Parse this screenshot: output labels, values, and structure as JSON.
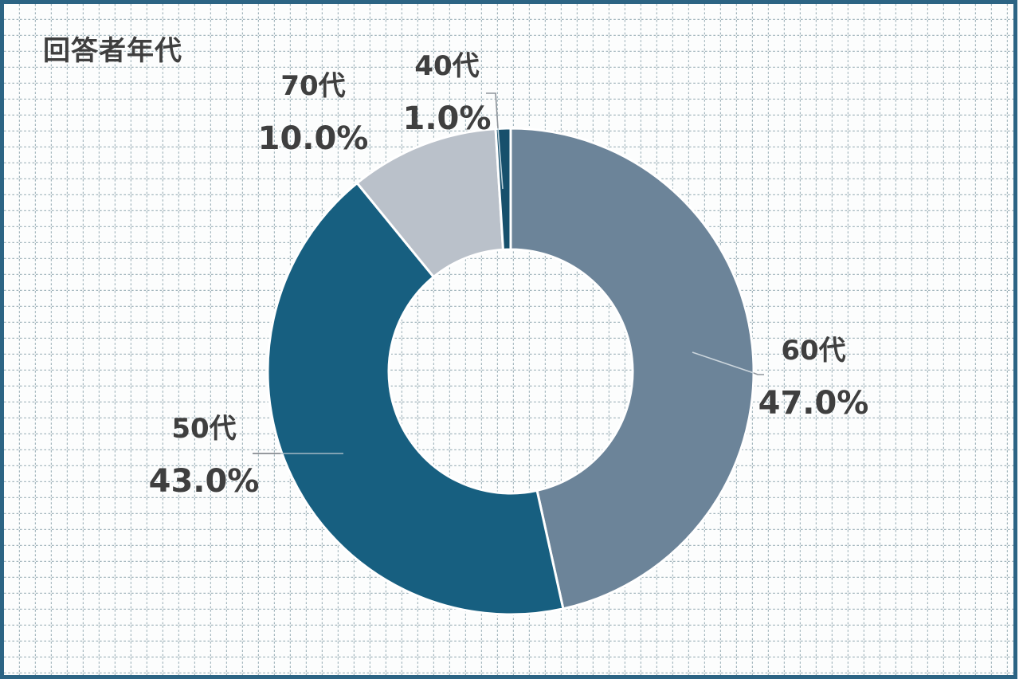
{
  "chart_data": {
    "type": "pie",
    "subtype": "donut",
    "title": "回答者年代",
    "legend": "none",
    "start_angle_deg": 0,
    "direction": "clockwise",
    "donut_hole_ratio": 0.5,
    "background_style": "dotted-square-grid-paper",
    "frame_color": "#2C6484",
    "label_color": "#3F3F3F",
    "separator_color": "#FFFFFF",
    "segments": [
      {
        "label": "60代",
        "value": 47.0,
        "value_label": "47.0%",
        "color": "#6C8499"
      },
      {
        "label": "50代",
        "value": 43.0,
        "value_label": "43.0%",
        "color": "#175F80"
      },
      {
        "label": "70代",
        "value": 10.0,
        "value_label": "10.0%",
        "color": "#BAC1CA"
      },
      {
        "label": "40代",
        "value": 1.0,
        "value_label": "1.0%",
        "color": "#17506C"
      }
    ]
  }
}
